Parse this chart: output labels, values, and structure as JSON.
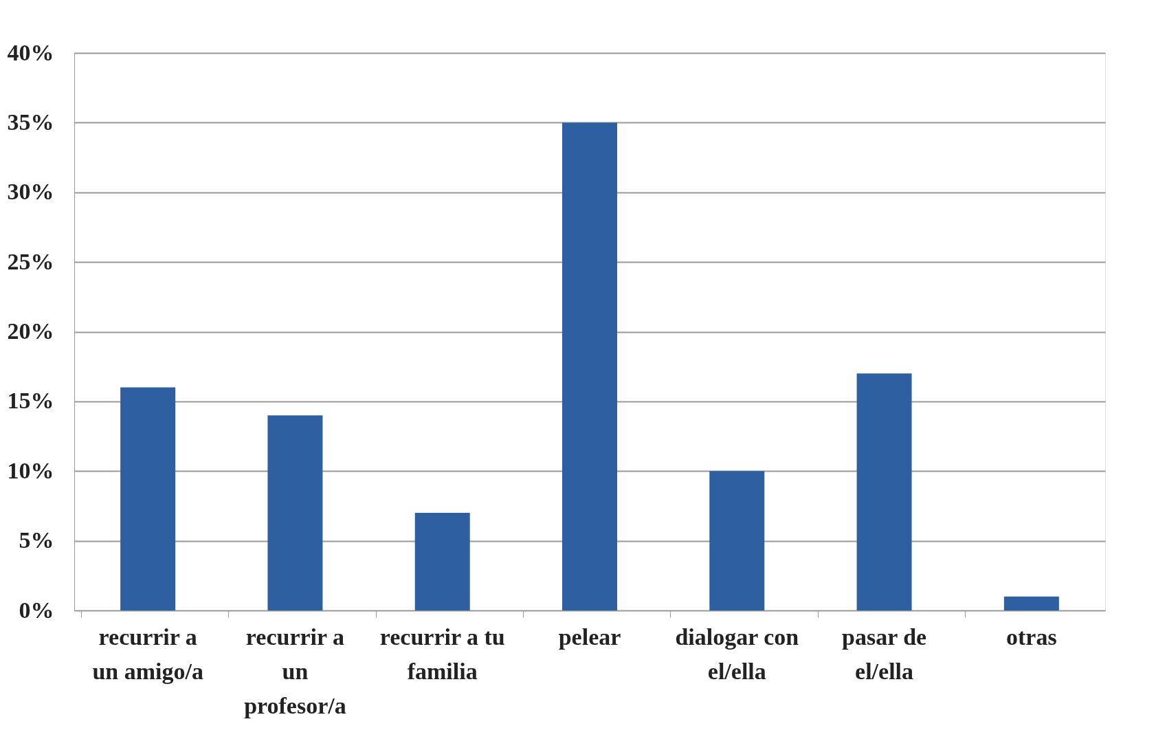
{
  "chart_data": {
    "type": "bar",
    "categories": [
      "recurrir a\nun amigo/a",
      "recurrir a\nun\nprofesor/a",
      "recurrir a tu\nfamilia",
      "pelear",
      "dialogar con\nel/ella",
      "pasar de\nel/ella",
      "otras"
    ],
    "values": [
      16,
      14,
      7,
      35,
      10,
      17,
      1
    ],
    "color": "#2e5fa1",
    "ylim": [
      0,
      40
    ],
    "yticks": [
      {
        "value": 0,
        "label": "0%"
      },
      {
        "value": 5,
        "label": "5%"
      },
      {
        "value": 10,
        "label": "10%"
      },
      {
        "value": 15,
        "label": "15%"
      },
      {
        "value": 20,
        "label": "20%"
      },
      {
        "value": 25,
        "label": "25%"
      },
      {
        "value": 30,
        "label": "30%"
      },
      {
        "value": 35,
        "label": "35%"
      },
      {
        "value": 40,
        "label": "40%"
      }
    ],
    "grid": "y"
  }
}
